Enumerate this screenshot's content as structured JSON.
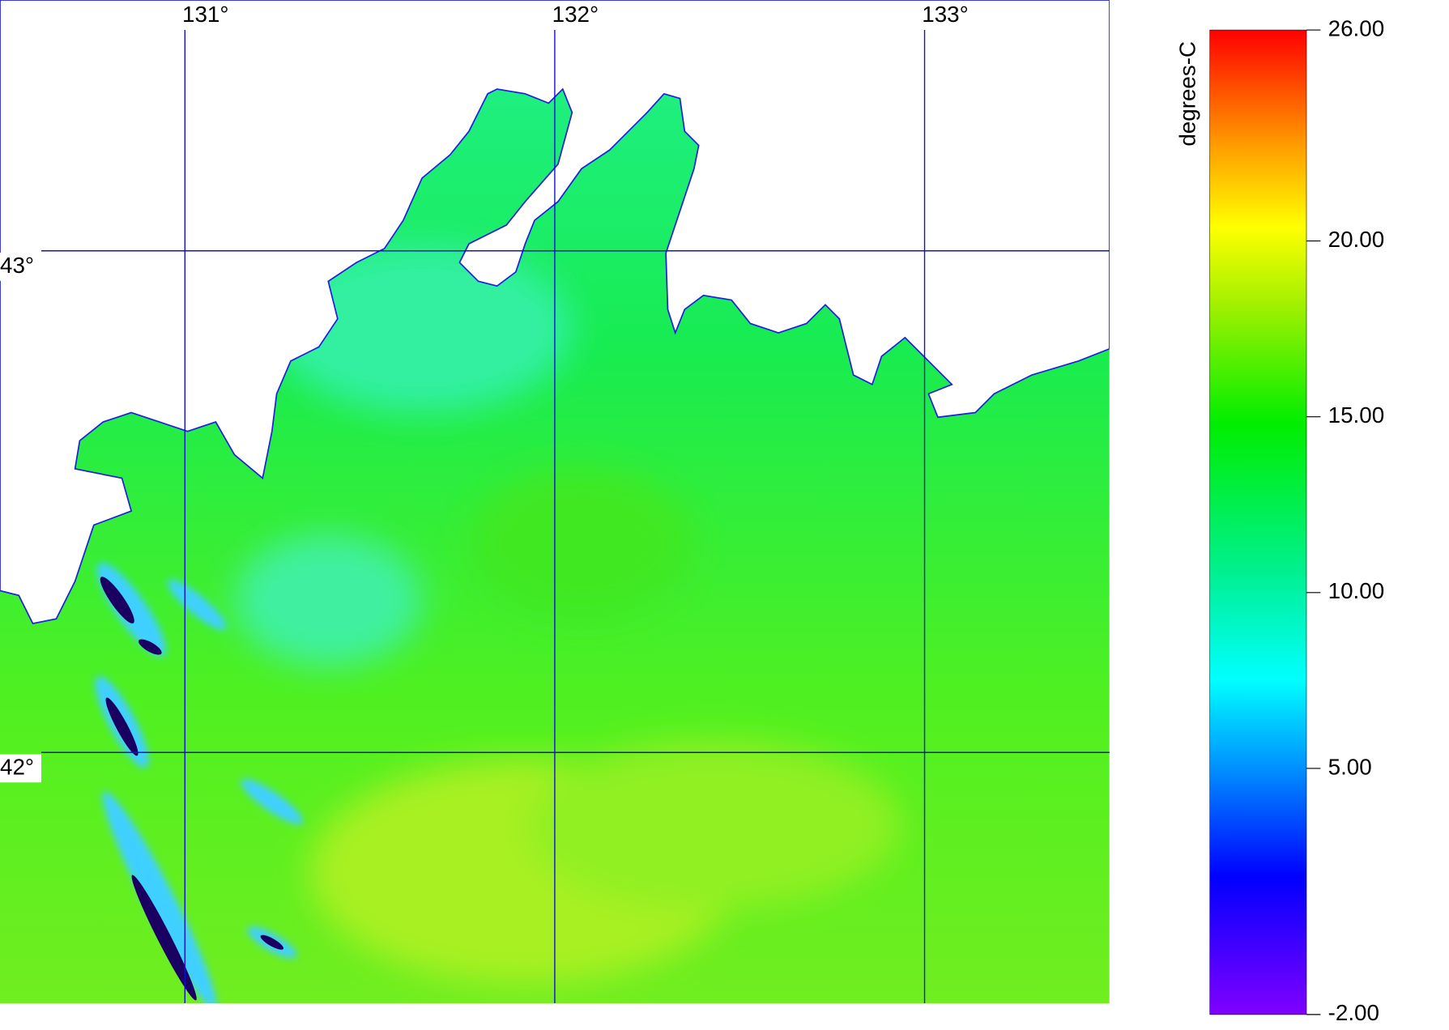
{
  "map": {
    "xlim": [
      130.5,
      133.5
    ],
    "ylim": [
      41.5,
      43.5
    ],
    "lon_ticks": [
      {
        "value": 131,
        "label": "131°"
      },
      {
        "value": 132,
        "label": "132°"
      },
      {
        "value": 133,
        "label": "133°"
      }
    ],
    "lat_ticks": [
      {
        "value": 43,
        "label": "43°"
      },
      {
        "value": 42,
        "label": "42°"
      }
    ]
  },
  "colorbar": {
    "label": "degrees-C",
    "lim": [
      -2,
      26
    ],
    "ticks": [
      {
        "value": 26,
        "label": "26.00"
      },
      {
        "value": 20,
        "label": "20.00"
      },
      {
        "value": 15,
        "label": "15.00"
      },
      {
        "value": 10,
        "label": "10.00"
      },
      {
        "value": 5,
        "label": "5.00"
      },
      {
        "value": -2,
        "label": "-2.00"
      }
    ]
  }
}
